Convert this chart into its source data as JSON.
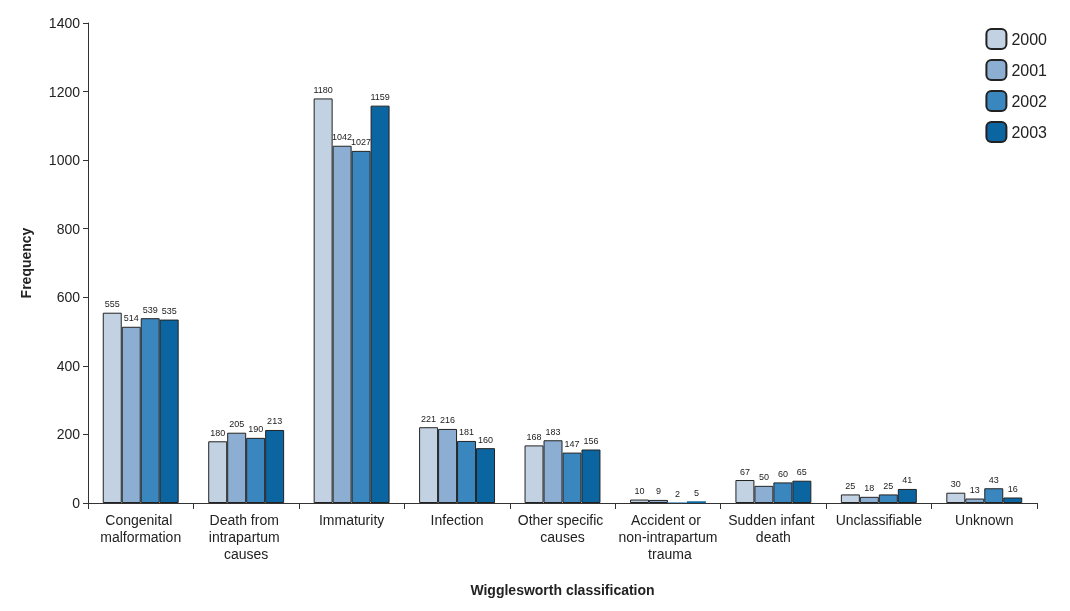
{
  "chart_data": {
    "type": "bar",
    "xlabel": "Wigglesworth classification",
    "ylabel": "Frequency",
    "categories": [
      "Congenital malformation",
      "Death from intrapartum causes",
      "Immaturity",
      "Infection",
      "Other specific causes",
      "Accident or non-intrapartum trauma",
      "Sudden infant death",
      "Unclassifiable",
      "Unknown"
    ],
    "series": [
      {
        "name": "2000",
        "color": "#c3d2e3",
        "values": [
          555,
          180,
          1180,
          221,
          168,
          10,
          67,
          25,
          30
        ]
      },
      {
        "name": "2001",
        "color": "#8caed2",
        "values": [
          514,
          205,
          1042,
          216,
          183,
          9,
          50,
          18,
          13
        ]
      },
      {
        "name": "2002",
        "color": "#3a87c0",
        "values": [
          539,
          190,
          1027,
          181,
          147,
          2,
          60,
          25,
          43
        ]
      },
      {
        "name": "2003",
        "color": "#0b65a0",
        "values": [
          535,
          213,
          1159,
          160,
          156,
          5,
          65,
          41,
          16
        ]
      }
    ],
    "ylim": [
      0,
      1400
    ],
    "yticks": [
      0,
      200,
      400,
      600,
      800,
      1000,
      1200,
      1400
    ],
    "grid": false,
    "legend": "top right",
    "data_labels": true
  }
}
